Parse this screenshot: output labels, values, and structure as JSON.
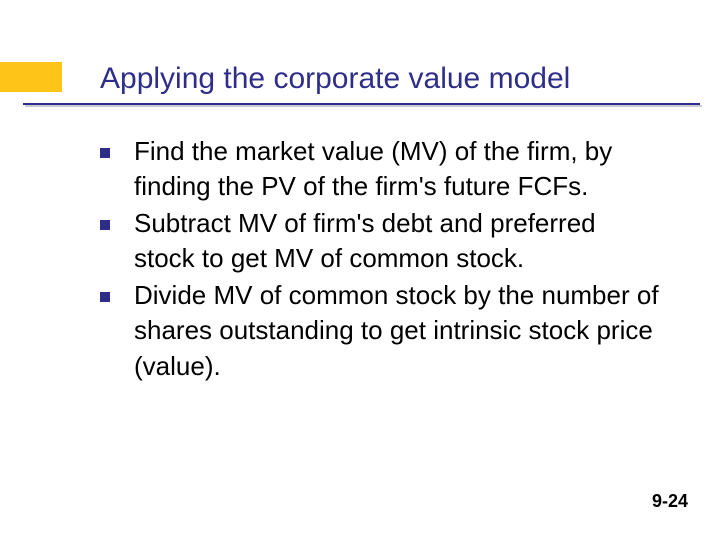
{
  "slide": {
    "title": "Applying the corporate value model",
    "bullets": [
      "Find the market value (MV) of the firm, by finding the PV of the firm's future FCFs.",
      "Subtract MV of firm's debt and preferred stock to get MV of common stock.",
      "Divide MV of common stock by the number of shares outstanding to get intrinsic stock price (value)."
    ],
    "page_number": "9-24",
    "colors": {
      "accent": "#fec418",
      "title_text": "#2f2d8a",
      "bullet_marker": "#2f2d8a",
      "underline": "#2f2d8a",
      "body_text": "#000000",
      "background": "#ffffff"
    },
    "typography": {
      "title_fontsize": 30,
      "body_fontsize": 26,
      "pagenum_fontsize": 18,
      "font_family": "Verdana"
    }
  }
}
